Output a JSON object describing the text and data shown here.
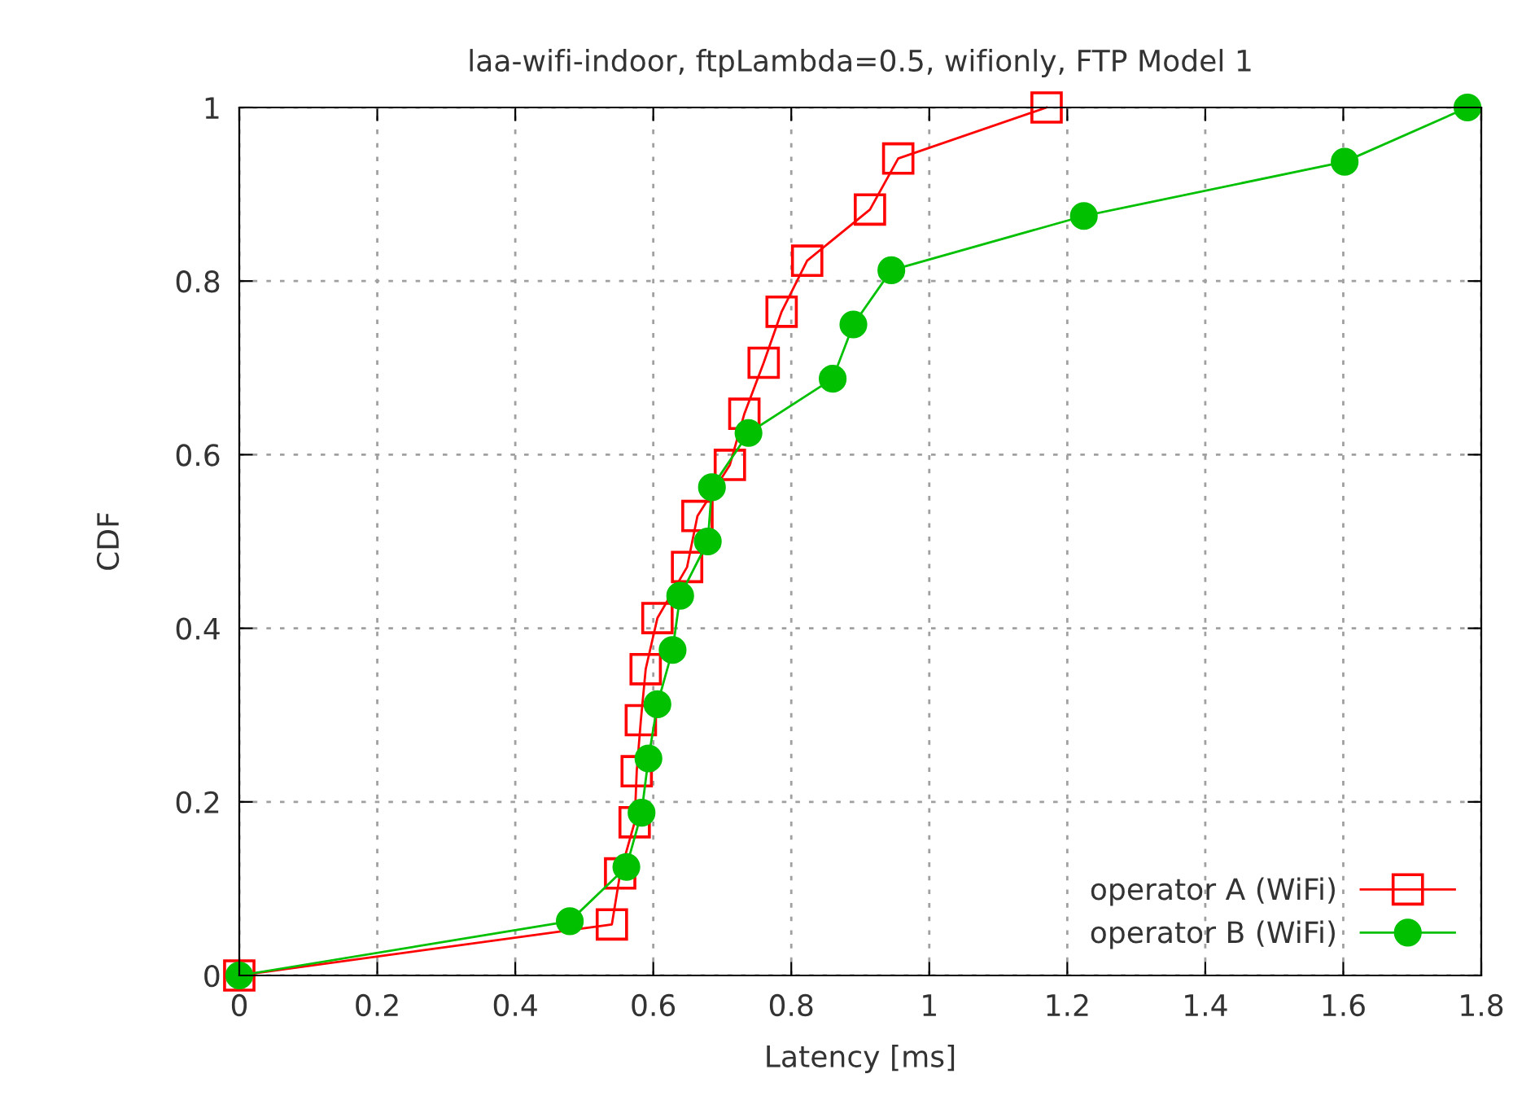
{
  "chart_data": {
    "type": "line",
    "title": "laa-wifi-indoor, ftpLambda=0.5, wifionly, FTP Model 1",
    "xlabel": "Latency [ms]",
    "ylabel": "CDF",
    "xlim": [
      0,
      1.8
    ],
    "xticks": [
      0,
      0.2,
      0.4,
      0.6,
      0.8,
      1,
      1.2,
      1.4,
      1.6,
      1.8
    ],
    "ylim": [
      0,
      1
    ],
    "yticks": [
      0,
      0.2,
      0.4,
      0.6,
      0.8,
      1
    ],
    "grid": true,
    "legend": "bottom right",
    "series": [
      {
        "name": "operator A (WiFi)",
        "color": "#ff0000",
        "marker": "square",
        "x": [
          0,
          0.54,
          0.552,
          0.573,
          0.576,
          0.582,
          0.589,
          0.606,
          0.649,
          0.664,
          0.711,
          0.732,
          0.76,
          0.786,
          0.823,
          0.914,
          0.955,
          1.17
        ],
        "values": [
          0,
          0.0588,
          0.1176,
          0.1765,
          0.2353,
          0.2941,
          0.3529,
          0.4118,
          0.4706,
          0.5294,
          0.5882,
          0.6471,
          0.7059,
          0.7647,
          0.8235,
          0.8824,
          0.9412,
          1
        ]
      },
      {
        "name": "operator B (WiFi)",
        "color": "#00c000",
        "marker": "circle",
        "x": [
          0,
          0.479,
          0.561,
          0.583,
          0.593,
          0.606,
          0.628,
          0.639,
          0.679,
          0.685,
          0.738,
          0.86,
          0.89,
          0.945,
          1.224,
          1.602,
          1.78
        ],
        "values": [
          0,
          0.0625,
          0.125,
          0.1875,
          0.25,
          0.3125,
          0.375,
          0.4375,
          0.5,
          0.5625,
          0.625,
          0.6875,
          0.75,
          0.8125,
          0.875,
          0.9375,
          1
        ]
      }
    ]
  }
}
